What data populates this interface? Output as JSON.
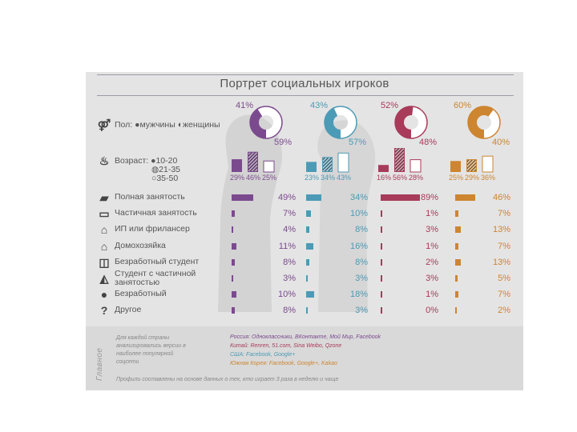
{
  "title": "Портрет социальных игроков",
  "colors": {
    "russia": "#7b4a8e",
    "china": "#4c9bb6",
    "usa": "#a83b5a",
    "korea": "#cd8530"
  },
  "gender": {
    "icon": "gender-icon",
    "label": "Пол:",
    "legend_male": "мужчины",
    "legend_female": "женщины",
    "male_symbol": "●",
    "female_symbol": "◐"
  },
  "age": {
    "icon": "birthday-cake-icon",
    "label": "Возраст:",
    "legend": [
      "10-20",
      "21-35",
      "35-50"
    ],
    "legend_symbols": [
      "●",
      "◍",
      "○"
    ]
  },
  "chart_data": [
    {
      "type": "pie",
      "title": "Пол",
      "categories": [
        "Россия",
        "Китай",
        "США",
        "Южная Корея"
      ],
      "series": [
        {
          "name": "мужчины",
          "values": [
            41,
            43,
            52,
            60
          ]
        },
        {
          "name": "женщины",
          "values": [
            59,
            57,
            48,
            40
          ]
        }
      ],
      "labels_top": [
        "41%",
        "43%",
        "52%",
        "60%"
      ],
      "labels_bottom": [
        "59%",
        "57%",
        "48%",
        "40%"
      ]
    },
    {
      "type": "bar",
      "title": "Возраст",
      "categories": [
        "10-20",
        "21-35",
        "35-50"
      ],
      "series": [
        {
          "name": "Россия",
          "values": [
            29,
            46,
            25
          ],
          "labels": [
            "29%",
            "46%",
            "25%"
          ]
        },
        {
          "name": "Китай",
          "values": [
            23,
            34,
            43
          ],
          "labels": [
            "23%",
            "34%",
            "43%"
          ]
        },
        {
          "name": "США",
          "values": [
            16,
            56,
            28
          ],
          "labels": [
            "16%",
            "56%",
            "28%"
          ]
        },
        {
          "name": "Южная Корея",
          "values": [
            25,
            29,
            36
          ],
          "labels": [
            "25%",
            "29%",
            "36%"
          ]
        }
      ]
    },
    {
      "type": "bar",
      "title": "Занятость",
      "categories": [
        "Полная занятость",
        "Частичная занятость",
        "ИП или фрилансер",
        "Домохозяйка",
        "Безработный студент",
        "Студент с частичной занятостью",
        "Безработный",
        "Другое"
      ],
      "category_icons": [
        "briefcase-icon",
        "briefcase-outline-icon",
        "house-icon",
        "house-outline-icon",
        "book-icon",
        "graduation-cap-icon",
        "person-icon",
        "question-icon"
      ],
      "series": [
        {
          "name": "Россия",
          "values": [
            49,
            7,
            4,
            11,
            8,
            3,
            10,
            8
          ],
          "labels": [
            "49%",
            "7%",
            "4%",
            "11%",
            "8%",
            "3%",
            "10%",
            "8%"
          ]
        },
        {
          "name": "Китай",
          "values": [
            34,
            10,
            8,
            16,
            8,
            3,
            18,
            3
          ],
          "labels": [
            "34%",
            "10%",
            "8%",
            "16%",
            "8%",
            "3%",
            "18%",
            "3%"
          ]
        },
        {
          "name": "США",
          "values": [
            89,
            1,
            3,
            1,
            2,
            3,
            1,
            0
          ],
          "labels": [
            "89%",
            "1%",
            "3%",
            "1%",
            "2%",
            "3%",
            "1%",
            "0%"
          ]
        },
        {
          "name": "Южная Корея",
          "values": [
            46,
            7,
            13,
            7,
            13,
            5,
            7,
            2
          ],
          "labels": [
            "46%",
            "7%",
            "13%",
            "7%",
            "13%",
            "5%",
            "7%",
            "2%"
          ]
        }
      ]
    }
  ],
  "footer": {
    "vertical_label": "Главное",
    "left_note": "Для каждой страны анализировались версии в наиболее популярной соцсети",
    "sources": [
      "Россия: Одноклассники, ВКонтакте, Мой Мир, Facebook",
      "Китай: Renren, 51.com, Sina Weibo, Qzone",
      "США: Facebook, Google+",
      "Южная Корея: Facebook, Google+, Kakao"
    ],
    "bottom_note": "Профили составлены на основе данных о тех, кто играет 3 раза в неделю и чаще"
  }
}
